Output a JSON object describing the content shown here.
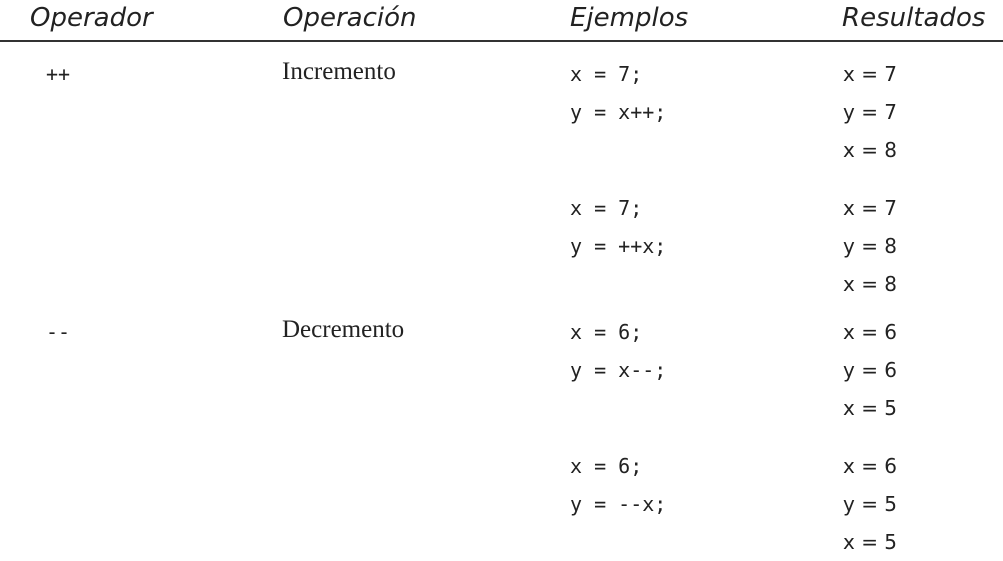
{
  "headers": {
    "operator": "Operador",
    "operation": "Operación",
    "examples": "Ejemplos",
    "results": "Resultados"
  },
  "rows": [
    {
      "operator": "++",
      "operation": "Incremento",
      "groups": [
        {
          "examples": [
            "x = 7;",
            "y = x++;"
          ],
          "results": [
            "x = 7",
            "y = 7",
            "x = 8"
          ]
        },
        {
          "examples": [
            "x = 7;",
            "y = ++x;"
          ],
          "results": [
            "x = 7",
            "y = 8",
            "x = 8"
          ]
        }
      ]
    },
    {
      "operator": "--",
      "operation": "Decremento",
      "groups": [
        {
          "examples": [
            "x = 6;",
            "y = x--;"
          ],
          "results": [
            "x = 6",
            "y = 6",
            "x = 5"
          ]
        },
        {
          "examples": [
            "x = 6;",
            "y = --x;"
          ],
          "results": [
            "x = 6",
            "y = 5",
            "x = 5"
          ]
        }
      ]
    }
  ]
}
